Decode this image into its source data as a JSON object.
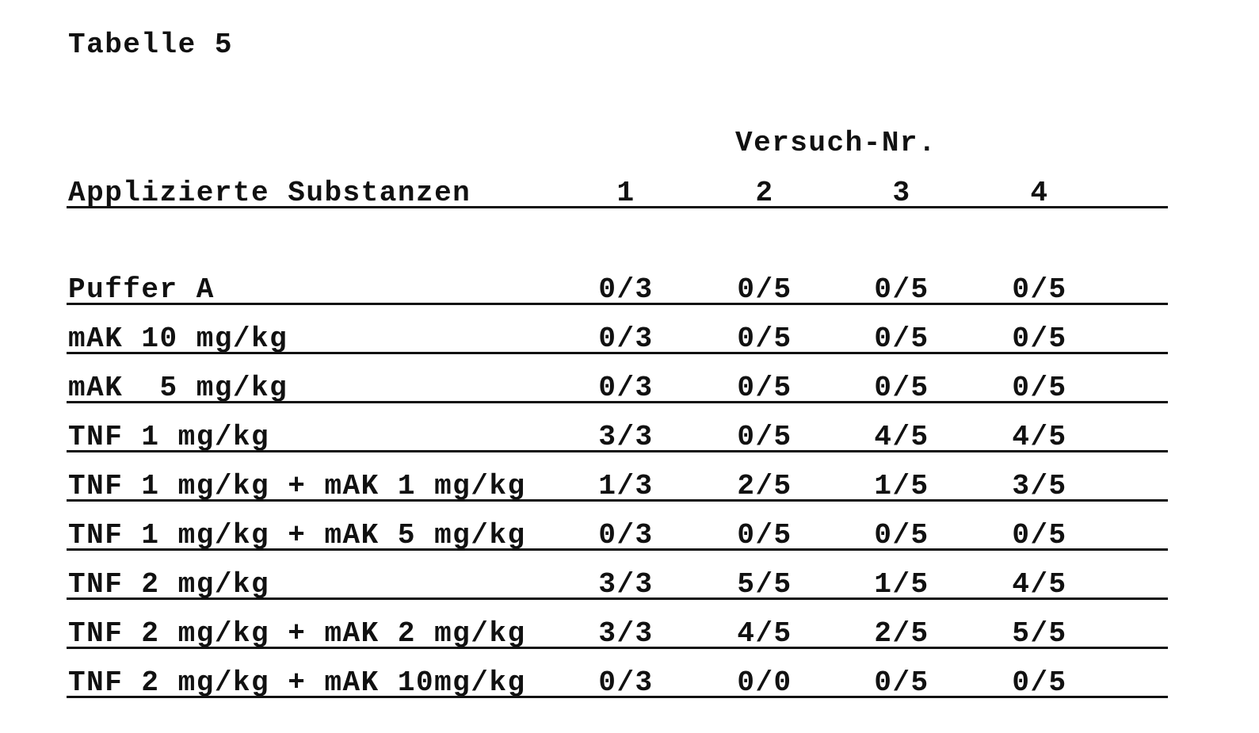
{
  "title": "Tabelle 5",
  "column_group_header": "Versuch-Nr.",
  "headers": [
    "Applizierte Substanzen",
    "1",
    "2",
    "3",
    "4"
  ],
  "rows": [
    [
      "Puffer A",
      "0/3",
      "0/5",
      "0/5",
      "0/5"
    ],
    [
      "mAK 10 mg/kg",
      "0/3",
      "0/5",
      "0/5",
      "0/5"
    ],
    [
      "mAK  5 mg/kg",
      "0/3",
      "0/5",
      "0/5",
      "0/5"
    ],
    [
      "TNF 1 mg/kg",
      "3/3",
      "0/5",
      "4/5",
      "4/5"
    ],
    [
      "TNF 1 mg/kg + mAK 1 mg/kg",
      "1/3",
      "2/5",
      "1/5",
      "3/5"
    ],
    [
      "TNF 1 mg/kg + mAK 5 mg/kg",
      "0/3",
      "0/5",
      "0/5",
      "0/5"
    ],
    [
      "TNF 2 mg/kg",
      "3/3",
      "5/5",
      "1/5",
      "4/5"
    ],
    [
      "TNF 2 mg/kg + mAK 2 mg/kg",
      "3/3",
      "4/5",
      "2/5",
      "5/5"
    ],
    [
      "TNF 2 mg/kg + mAK 10mg/kg",
      "0/3",
      "0/0",
      "0/5",
      "0/5"
    ]
  ]
}
